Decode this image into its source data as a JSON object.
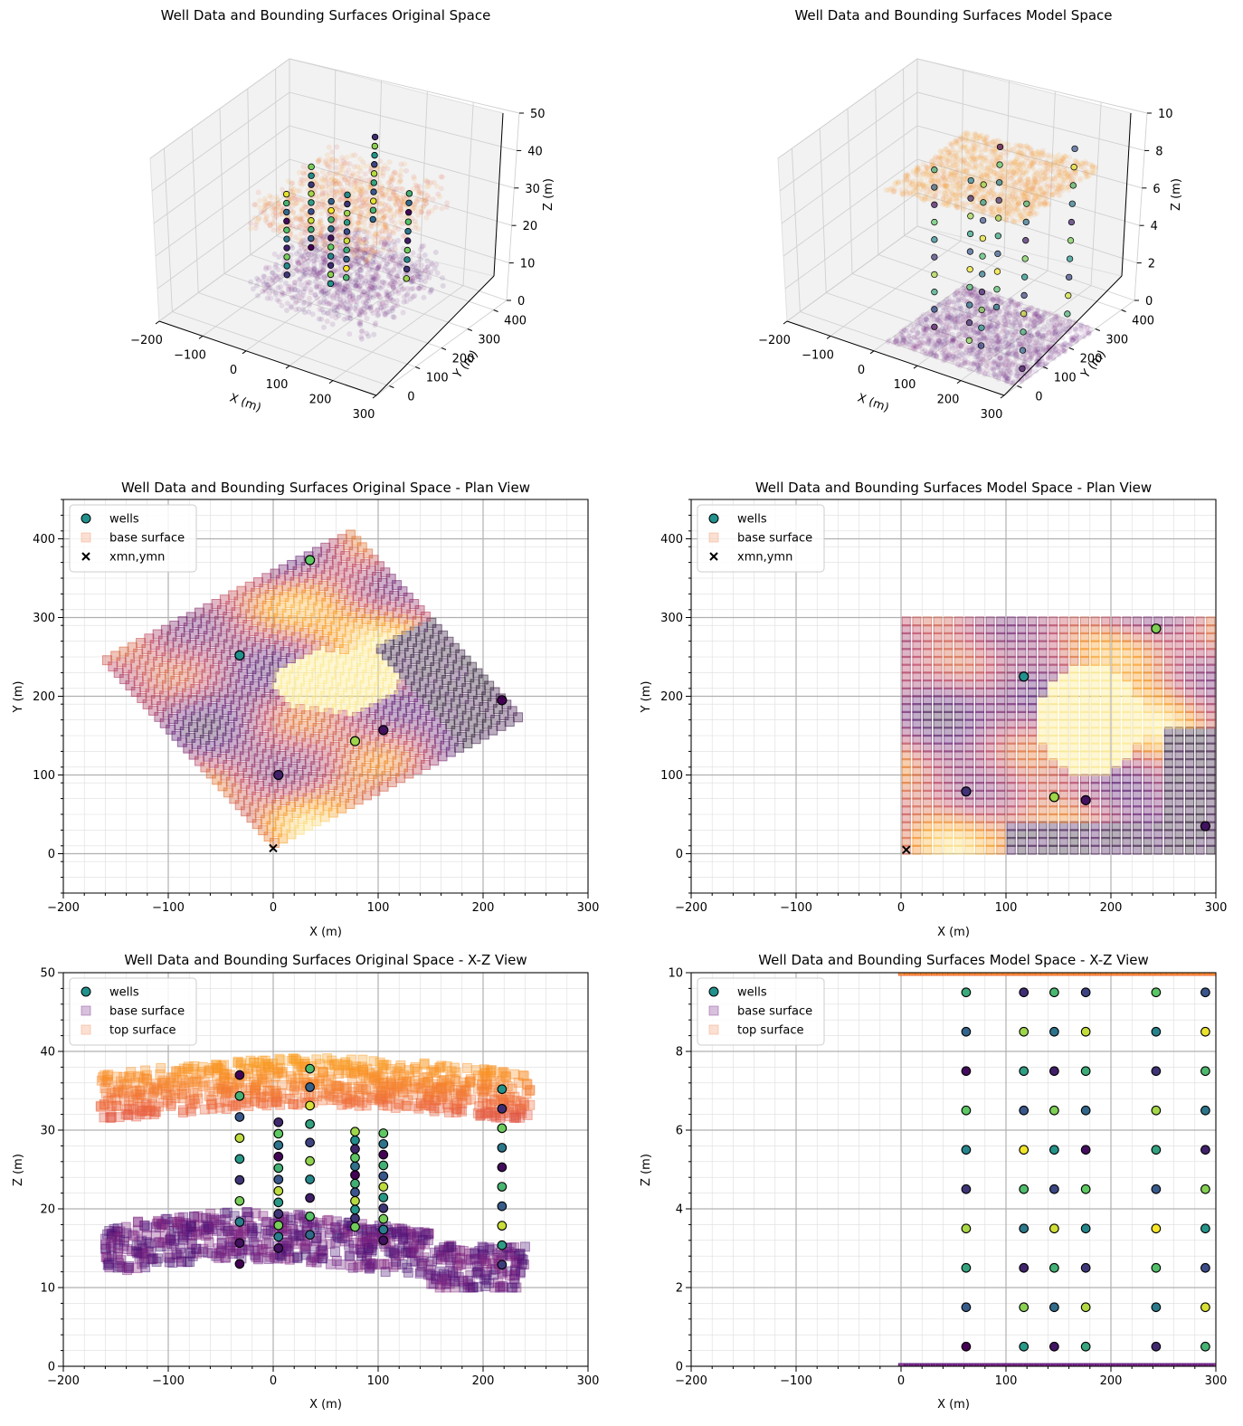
{
  "chart_data": [
    {
      "id": "p3d_orig",
      "type": "scatter3d",
      "title": "Well Data and Bounding Surfaces Original Space",
      "xlabel": "X (m)",
      "ylabel": "Y (m)",
      "zlabel": "Z (m)",
      "xlim": [
        -200,
        300
      ],
      "ylim": [
        -50,
        450
      ],
      "zlim": [
        0,
        50
      ],
      "xticks": [
        -200,
        -100,
        0,
        100,
        200,
        300
      ],
      "yticks": [
        0,
        100,
        200,
        300,
        400
      ],
      "zticks": [
        0,
        10,
        20,
        30,
        40,
        50
      ],
      "wells": [
        {
          "x": -32,
          "y": 252
        },
        {
          "x": 5,
          "y": 100
        },
        {
          "x": 35,
          "y": 373
        },
        {
          "x": 78,
          "y": 143
        },
        {
          "x": 105,
          "y": 157
        },
        {
          "x": 218,
          "y": 195
        }
      ],
      "base_z_range": [
        10,
        20
      ],
      "top_z_range": [
        30,
        40
      ]
    },
    {
      "id": "p3d_model",
      "type": "scatter3d",
      "title": "Well Data and Bounding Surfaces Model Space",
      "xlabel": "X (m)",
      "ylabel": "Y (m)",
      "zlabel": "Z (m)",
      "xlim": [
        -200,
        300
      ],
      "ylim": [
        -50,
        450
      ],
      "zlim": [
        0,
        10
      ],
      "xticks": [
        -200,
        -100,
        0,
        100,
        200,
        300
      ],
      "yticks": [
        0,
        100,
        200,
        300,
        400
      ],
      "zticks": [
        0,
        2,
        4,
        6,
        8,
        10
      ],
      "base_z": 0,
      "top_z": 10
    },
    {
      "id": "plan_orig",
      "type": "scatter",
      "title": "Well Data and Bounding Surfaces Original Space - Plan View",
      "xlabel": "X (m)",
      "ylabel": "Y (m)",
      "xlim": [
        -200,
        300
      ],
      "ylim": [
        -50,
        450
      ],
      "xticks": [
        -200,
        -100,
        0,
        100,
        200,
        300
      ],
      "yticks": [
        0,
        100,
        200,
        300,
        400
      ],
      "legend": [
        "wells",
        "base surface",
        "xmn,ymn"
      ],
      "wells": [
        {
          "x": -32,
          "y": 252,
          "c": 0.5
        },
        {
          "x": 5,
          "y": 100,
          "c": 0.1
        },
        {
          "x": 35,
          "y": 373,
          "c": 0.75
        },
        {
          "x": 78,
          "y": 143,
          "c": 0.85
        },
        {
          "x": 105,
          "y": 157,
          "c": 0.05
        },
        {
          "x": 218,
          "y": 195,
          "c": 0.0
        }
      ],
      "origin": {
        "x": 0,
        "y": 7
      },
      "grid_corners": [
        [
          0,
          7
        ],
        [
          240,
          172
        ],
        [
          75,
          412
        ],
        [
          -165,
          247
        ]
      ]
    },
    {
      "id": "plan_model",
      "type": "scatter",
      "title": "Well Data and Bounding Surfaces Model Space - Plan View",
      "xlabel": "X (m)",
      "ylabel": "Y (m)",
      "xlim": [
        -200,
        300
      ],
      "ylim": [
        -50,
        450
      ],
      "xticks": [
        -200,
        -100,
        0,
        100,
        200,
        300
      ],
      "yticks": [
        0,
        100,
        200,
        300,
        400
      ],
      "legend": [
        "wells",
        "base surface",
        "xmn,ymn"
      ],
      "wells": [
        {
          "x": 62,
          "y": 79,
          "c": 0.15
        },
        {
          "x": 117,
          "y": 225,
          "c": 0.5
        },
        {
          "x": 146,
          "y": 72,
          "c": 0.85
        },
        {
          "x": 176,
          "y": 68,
          "c": 0.05
        },
        {
          "x": 243,
          "y": 286,
          "c": 0.8
        },
        {
          "x": 290,
          "y": 35,
          "c": 0.05
        }
      ],
      "origin": {
        "x": 5,
        "y": 5
      },
      "grid_extent": {
        "x": [
          0,
          300
        ],
        "y": [
          0,
          300
        ]
      }
    },
    {
      "id": "xz_orig",
      "type": "scatter",
      "title": "Well Data and Bounding Surfaces Original Space - X-Z View",
      "xlabel": "X (m)",
      "ylabel": "Z (m)",
      "xlim": [
        -200,
        300
      ],
      "ylim": [
        0,
        50
      ],
      "xticks": [
        -200,
        -100,
        0,
        100,
        200,
        300
      ],
      "yticks": [
        0,
        10,
        20,
        30,
        40,
        50
      ],
      "legend": [
        "wells",
        "base surface",
        "top surface"
      ],
      "well_columns": [
        {
          "x": -32,
          "zmin": 13,
          "zmax": 37,
          "n": 10
        },
        {
          "x": 5,
          "zmin": 15,
          "zmax": 31,
          "n": 12
        },
        {
          "x": 35,
          "zmin": 16.7,
          "zmax": 37.8,
          "n": 10
        },
        {
          "x": 78,
          "zmin": 17.7,
          "zmax": 29.8,
          "n": 12
        },
        {
          "x": 105,
          "zmin": 16,
          "zmax": 29.6,
          "n": 11
        },
        {
          "x": 218,
          "zmin": 12.9,
          "zmax": 35.2,
          "n": 10
        }
      ],
      "base_z_range": [
        10,
        20
      ],
      "top_z_range": [
        30,
        40
      ]
    },
    {
      "id": "xz_model",
      "type": "scatter",
      "title": "Well Data and Bounding Surfaces Model Space - X-Z View",
      "xlabel": "X (m)",
      "ylabel": "Z (m)",
      "xlim": [
        -200,
        300
      ],
      "ylim": [
        0,
        10
      ],
      "xticks": [
        -200,
        -100,
        0,
        100,
        200,
        300
      ],
      "yticks": [
        0,
        2,
        4,
        6,
        8,
        10
      ],
      "legend": [
        "wells",
        "base surface",
        "top surface"
      ],
      "well_x": [
        62,
        117,
        146,
        176,
        243,
        290
      ],
      "well_z": [
        0.5,
        1.5,
        2.5,
        3.5,
        4.5,
        5.5,
        6.5,
        7.5,
        8.5,
        9.5
      ],
      "base_z": 0,
      "top_z": 10
    }
  ]
}
